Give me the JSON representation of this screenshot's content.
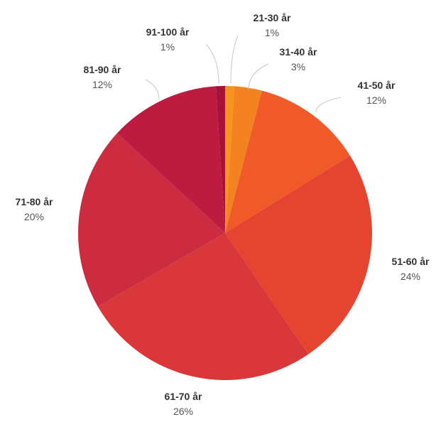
{
  "chart_data": {
    "type": "pie",
    "title": "",
    "categories": [
      "21-30 år",
      "31-40 år",
      "41-50 år",
      "51-60 år",
      "61-70 år",
      "71-80 år",
      "81-90 år",
      "91-100 år"
    ],
    "values": [
      1,
      3,
      12,
      24,
      26,
      20,
      12,
      1
    ],
    "value_labels": [
      "1%",
      "3%",
      "12%",
      "24%",
      "26%",
      "20%",
      "12%",
      "1%"
    ],
    "colors": [
      "#f7941d",
      "#f58220",
      "#f05a28",
      "#e54430",
      "#d9373a",
      "#cc2b40",
      "#bd1b3f",
      "#a8123a"
    ],
    "start_angle_deg": 0,
    "direction": "clockwise",
    "legend": "none",
    "labels": "outside-with-leader-lines"
  }
}
